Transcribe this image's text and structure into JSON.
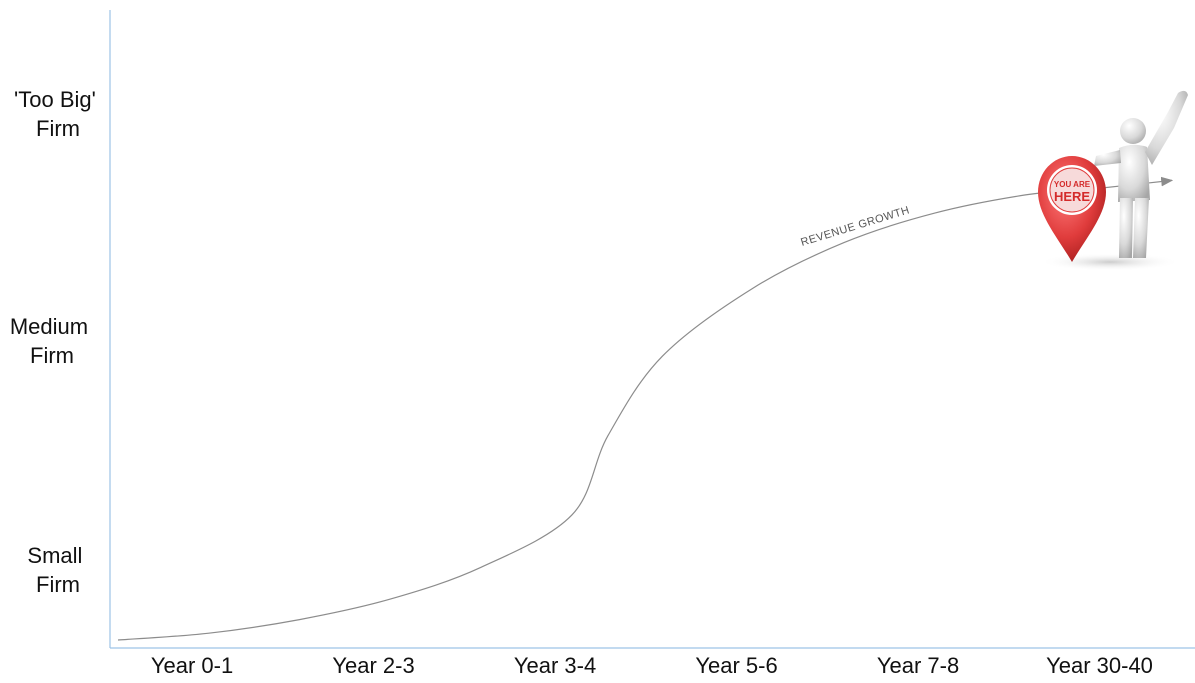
{
  "chart_data": {
    "type": "line",
    "title": "",
    "xlabel": "",
    "ylabel": "",
    "categories": [
      "Year 0-1",
      "Year 2-3",
      "Year 3-4",
      "Year 5-6",
      "Year 7-8",
      "Year 30-40"
    ],
    "y_tick_labels": [
      [
        "Small",
        "Firm"
      ],
      [
        "Medium",
        "Firm"
      ],
      [
        "'Too Big'",
        "Firm"
      ]
    ],
    "series": [
      {
        "name": "",
        "points": [
          [
            0.0,
            0.0
          ],
          [
            0.5,
            0.03
          ],
          [
            1.0,
            0.09
          ],
          [
            1.5,
            0.18
          ],
          [
            2.0,
            0.32
          ],
          [
            2.5,
            0.55
          ],
          [
            2.7,
            0.9
          ],
          [
            3.0,
            1.25
          ],
          [
            3.5,
            1.55
          ],
          [
            4.0,
            1.75
          ],
          [
            4.5,
            1.88
          ],
          [
            5.0,
            1.96
          ],
          [
            5.3,
            1.98
          ]
        ]
      }
    ],
    "ylim": [
      0,
      2.4
    ],
    "annotation": "REVENUE GROWTH",
    "marker": {
      "label_line1": "YOU ARE",
      "label_line2": "HERE"
    },
    "colors": {
      "axis": "#9dc3e6",
      "curve": "#8c8c8c",
      "pin": "#e03c3c",
      "figure": "#d9d9d9"
    },
    "grid": false,
    "legend": "none"
  }
}
